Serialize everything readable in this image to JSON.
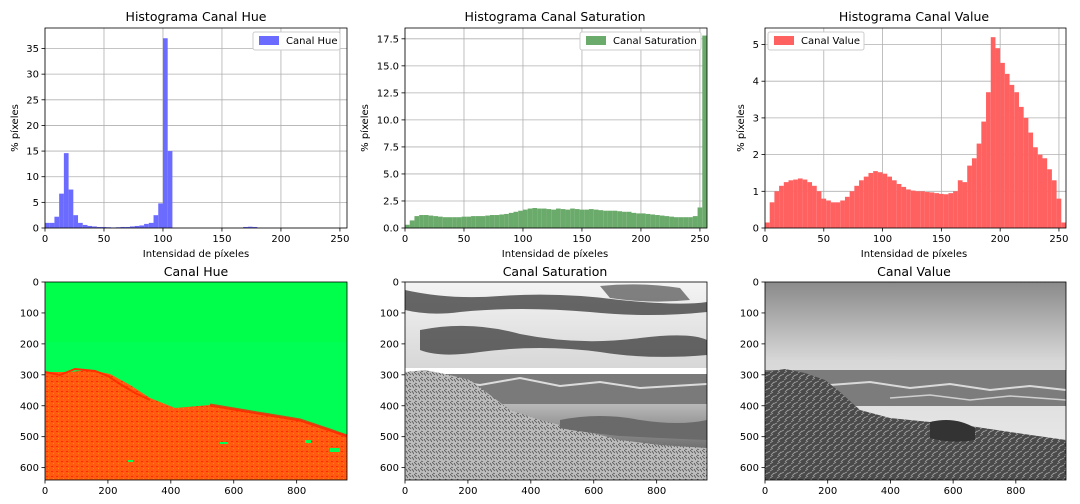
{
  "chart_data": [
    {
      "type": "bar",
      "id": "hist-hue",
      "title": "Histograma Canal Hue",
      "xlabel": "Intensidad de píxeles",
      "ylabel": "% píxeles",
      "xlim": [
        0,
        256
      ],
      "ylim": [
        0,
        39
      ],
      "xticks": [
        "0",
        "50",
        "100",
        "150",
        "200",
        "250"
      ],
      "yticks": [
        "0",
        "5",
        "10",
        "15",
        "20",
        "25",
        "30",
        "35"
      ],
      "grid": true,
      "legend": "top-right",
      "bin_width": 4,
      "series": [
        {
          "name": "Canal Hue",
          "color": "#6b6bff",
          "bins": [
            0,
            4,
            8,
            12,
            16,
            20,
            24,
            28,
            32,
            36,
            40,
            44,
            48,
            52,
            56,
            60,
            64,
            68,
            72,
            76,
            80,
            84,
            88,
            92,
            96,
            100,
            104,
            168,
            172,
            176
          ],
          "values": [
            1.0,
            1.0,
            2.2,
            6.7,
            14.6,
            7.5,
            2.5,
            1.0,
            0.6,
            0.4,
            0.3,
            0.2,
            0.2,
            0.15,
            0.1,
            0.15,
            0.2,
            0.2,
            0.3,
            0.4,
            0.5,
            0.8,
            1.0,
            2.5,
            4.8,
            37.0,
            15.0,
            0.2,
            0.25,
            0.2
          ]
        }
      ]
    },
    {
      "type": "bar",
      "id": "hist-saturation",
      "title": "Histograma Canal Saturation",
      "xlabel": "Intensidad de píxeles",
      "ylabel": "% píxeles",
      "xlim": [
        0,
        256
      ],
      "ylim": [
        0,
        18.5
      ],
      "xticks": [
        "0",
        "50",
        "100",
        "150",
        "200",
        "250"
      ],
      "yticks": [
        "0.0",
        "2.5",
        "5.0",
        "7.5",
        "10.0",
        "12.5",
        "15.0",
        "17.5"
      ],
      "grid": true,
      "legend": "top-right",
      "bin_width": 4,
      "series": [
        {
          "name": "Canal Saturation",
          "color": "#6aaa6a",
          "bins": [
            0,
            4,
            8,
            12,
            16,
            20,
            24,
            28,
            32,
            36,
            40,
            44,
            48,
            52,
            56,
            60,
            64,
            68,
            72,
            76,
            80,
            84,
            88,
            92,
            96,
            100,
            104,
            108,
            112,
            116,
            120,
            124,
            128,
            132,
            136,
            140,
            144,
            148,
            152,
            156,
            160,
            164,
            168,
            172,
            176,
            180,
            184,
            188,
            192,
            196,
            200,
            204,
            208,
            212,
            216,
            220,
            224,
            228,
            232,
            236,
            240,
            244,
            248,
            252
          ],
          "values": [
            0.3,
            0.7,
            1.1,
            1.2,
            1.2,
            1.15,
            1.1,
            1.05,
            1.0,
            1.0,
            1.0,
            1.0,
            1.05,
            1.05,
            1.1,
            1.1,
            1.1,
            1.15,
            1.2,
            1.2,
            1.25,
            1.3,
            1.4,
            1.5,
            1.6,
            1.7,
            1.8,
            1.85,
            1.8,
            1.8,
            1.75,
            1.7,
            1.8,
            1.75,
            1.7,
            1.8,
            1.75,
            1.7,
            1.7,
            1.75,
            1.7,
            1.65,
            1.6,
            1.6,
            1.6,
            1.55,
            1.5,
            1.5,
            1.4,
            1.35,
            1.35,
            1.3,
            1.25,
            1.2,
            1.15,
            1.1,
            1.05,
            1.0,
            1.0,
            1.0,
            1.0,
            1.1,
            1.9,
            17.8
          ]
        }
      ]
    },
    {
      "type": "bar",
      "id": "hist-value",
      "title": "Histograma Canal Value",
      "xlabel": "Intensidad de píxeles",
      "ylabel": "% píxeles",
      "xlim": [
        0,
        256
      ],
      "ylim": [
        0,
        5.45
      ],
      "xticks": [
        "0",
        "50",
        "100",
        "150",
        "200",
        "250"
      ],
      "yticks": [
        "0",
        "1",
        "2",
        "3",
        "4",
        "5"
      ],
      "grid": true,
      "legend": "top-left",
      "bin_width": 4,
      "series": [
        {
          "name": "Canal Value",
          "color": "#ff6060",
          "bins": [
            0,
            4,
            8,
            12,
            16,
            20,
            24,
            28,
            32,
            36,
            40,
            44,
            48,
            52,
            56,
            60,
            64,
            68,
            72,
            76,
            80,
            84,
            88,
            92,
            96,
            100,
            104,
            108,
            112,
            116,
            120,
            124,
            128,
            132,
            136,
            140,
            144,
            148,
            152,
            156,
            160,
            164,
            168,
            172,
            176,
            180,
            184,
            188,
            192,
            196,
            200,
            204,
            208,
            212,
            216,
            220,
            224,
            228,
            232,
            236,
            240,
            244,
            248,
            252
          ],
          "values": [
            0.15,
            0.7,
            1.0,
            1.15,
            1.25,
            1.3,
            1.32,
            1.35,
            1.32,
            1.25,
            1.15,
            1.0,
            0.8,
            0.75,
            0.7,
            0.7,
            0.75,
            0.85,
            1.0,
            1.15,
            1.3,
            1.4,
            1.5,
            1.55,
            1.52,
            1.48,
            1.4,
            1.3,
            1.2,
            1.12,
            1.05,
            1.02,
            1.0,
            1.0,
            0.98,
            0.97,
            0.95,
            0.93,
            0.92,
            0.95,
            1.0,
            1.3,
            1.25,
            1.7,
            1.9,
            2.3,
            2.9,
            3.7,
            5.2,
            4.9,
            4.5,
            4.2,
            3.9,
            3.7,
            3.3,
            3.0,
            2.6,
            2.2,
            2.0,
            1.9,
            1.6,
            1.3,
            0.8,
            0.15
          ]
        }
      ]
    },
    {
      "type": "image",
      "id": "img-hue",
      "title": "Canal Hue",
      "xlim": [
        0,
        960
      ],
      "ylim": [
        640,
        0
      ],
      "xticks": [
        "0",
        "200",
        "400",
        "600",
        "800"
      ],
      "yticks": [
        "0",
        "100",
        "200",
        "300",
        "400",
        "500",
        "600"
      ]
    },
    {
      "type": "image",
      "id": "img-saturation",
      "title": "Canal Saturation",
      "xlim": [
        0,
        960
      ],
      "ylim": [
        640,
        0
      ],
      "xticks": [
        "0",
        "200",
        "400",
        "600",
        "800"
      ],
      "yticks": [
        "0",
        "100",
        "200",
        "300",
        "400",
        "500",
        "600"
      ]
    },
    {
      "type": "image",
      "id": "img-value",
      "title": "Canal Value",
      "xlim": [
        0,
        960
      ],
      "ylim": [
        640,
        0
      ],
      "xticks": [
        "0",
        "200",
        "400",
        "600",
        "800"
      ],
      "yticks": [
        "0",
        "100",
        "200",
        "300",
        "400",
        "500",
        "600"
      ]
    }
  ]
}
